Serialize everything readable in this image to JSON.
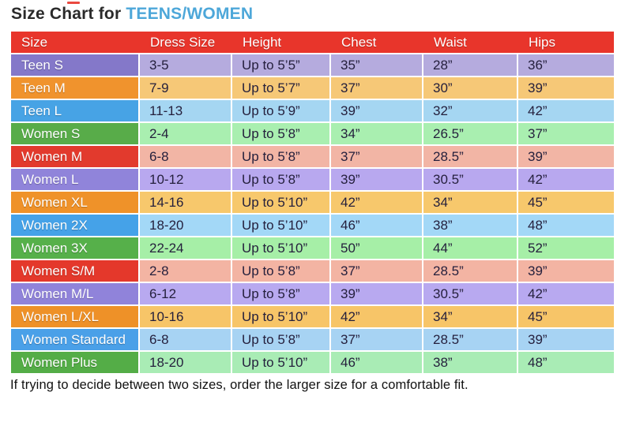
{
  "title": {
    "prefix": "Size Chart for ",
    "accent": "TEENS/WOMEN",
    "accent_color": "#4da7d9"
  },
  "table": {
    "header": {
      "bg": "#e8352b",
      "text_color": "#ffffff",
      "labels": [
        "Size",
        "Dress Size",
        "Height",
        "Chest",
        "Waist",
        "Hips"
      ]
    },
    "rows": [
      {
        "size": "Teen S",
        "dress_size": "3-5",
        "height": "Up to 5’5”",
        "chest": "35”",
        "waist": "28”",
        "hips": "36”",
        "label_bg": "#8478c9",
        "row_bg": "#b5abde"
      },
      {
        "size": "Teen M",
        "dress_size": "7-9",
        "height": "Up to 5’7”",
        "chest": "37”",
        "waist": "30”",
        "hips": "39”",
        "label_bg": "#f0932d",
        "row_bg": "#f6c877"
      },
      {
        "size": "Teen L",
        "dress_size": "11-13",
        "height": "Up to 5’9”",
        "chest": "39”",
        "waist": "32”",
        "hips": "42”",
        "label_bg": "#47a3e5",
        "row_bg": "#a5d6f2"
      },
      {
        "size": "Women S",
        "dress_size": "2-4",
        "height": "Up to 5’8”",
        "chest": "34”",
        "waist": "26.5”",
        "hips": "37”",
        "label_bg": "#58ac49",
        "row_bg": "#a9efb0"
      },
      {
        "size": "Women M",
        "dress_size": "6-8",
        "height": "Up to 5’8”",
        "chest": "37”",
        "waist": "28.5”",
        "hips": "39”",
        "label_bg": "#e23a2d",
        "row_bg": "#f2b5a5"
      },
      {
        "size": "Women L",
        "dress_size": "10-12",
        "height": "Up to 5’8”",
        "chest": "39”",
        "waist": "30.5”",
        "hips": "42”",
        "label_bg": "#9084da",
        "row_bg": "#b8a8ef"
      },
      {
        "size": "Women XL",
        "dress_size": "14-16",
        "height": "Up to 5’10”",
        "chest": "42”",
        "waist": "34”",
        "hips": "45”",
        "label_bg": "#ef9229",
        "row_bg": "#f7c86c"
      },
      {
        "size": "Women 2X",
        "dress_size": "18-20",
        "height": "Up to 5’10”",
        "chest": "46”",
        "waist": "38”",
        "hips": "48”",
        "label_bg": "#45a2e8",
        "row_bg": "#a3d8f7"
      },
      {
        "size": "Women 3X",
        "dress_size": "22-24",
        "height": "Up to 5’10”",
        "chest": "50”",
        "waist": "44”",
        "hips": "52”",
        "label_bg": "#56b04a",
        "row_bg": "#a6efa7"
      },
      {
        "size": "Women S/M",
        "dress_size": "2-8",
        "height": "Up to 5’8”",
        "chest": "37”",
        "waist": "28.5”",
        "hips": "39”",
        "label_bg": "#e4382b",
        "row_bg": "#f3b4a3"
      },
      {
        "size": "Women M/L",
        "dress_size": "6-12",
        "height": "Up to 5’8”",
        "chest": "39”",
        "waist": "30.5”",
        "hips": "42”",
        "label_bg": "#9083da",
        "row_bg": "#b8a9f0"
      },
      {
        "size": "Women L/XL",
        "dress_size": "10-16",
        "height": "Up to 5’10”",
        "chest": "42”",
        "waist": "34”",
        "hips": "45”",
        "label_bg": "#ee9128",
        "row_bg": "#f7c568"
      },
      {
        "size": "Women Standard",
        "dress_size": "6-8",
        "height": "Up to 5’8”",
        "chest": "37”",
        "waist": "28.5”",
        "hips": "39”",
        "label_bg": "#4aa0e8",
        "row_bg": "#a7d3f3"
      },
      {
        "size": "Women Plus",
        "dress_size": "18-20",
        "height": "Up to 5’10”",
        "chest": "46”",
        "waist": "38”",
        "hips": "48”",
        "label_bg": "#54ad47",
        "row_bg": "#a9ecb5"
      }
    ]
  },
  "footnote": "If trying to decide between two sizes, order the larger size for a comfortable fit."
}
